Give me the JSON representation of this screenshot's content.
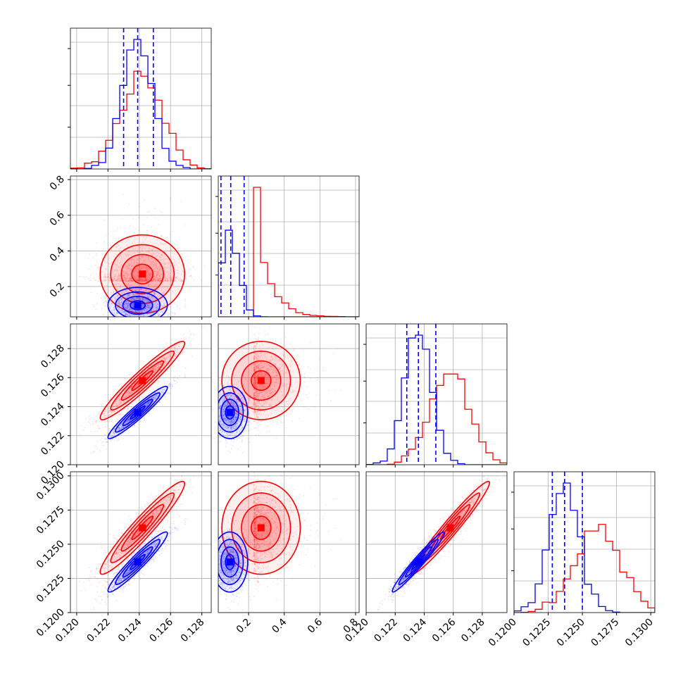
{
  "chart_data": {
    "type": "corner",
    "grid": true,
    "colors": {
      "red": "#ff0000",
      "blue": "#0000ff"
    },
    "series": [
      {
        "color": "#ff0000",
        "median": [
          0.1242,
          0.27,
          0.1258,
          0.1262
        ],
        "std": [
          0.00135,
          0.11,
          0.00135,
          0.0017
        ],
        "corr": {
          "0-2": 0.95,
          "0-3": 0.95,
          "2-3": 0.97,
          "1-2": 0.0,
          "1-3": 0.0,
          "0-1": 0.0
        }
      },
      {
        "color": "#0000ff",
        "median": [
          0.1239,
          0.095,
          0.1236,
          0.1237
        ],
        "std": [
          0.00095,
          0.05,
          0.0009,
          0.0011
        ],
        "corr": {
          "0-2": 0.95,
          "0-3": 0.95,
          "2-3": 0.97,
          "1-2": 0.0,
          "1-3": 0.0,
          "0-1": 0.0
        }
      }
    ],
    "quantiles_blue": [
      [
        0.123,
        0.1239,
        0.1249
      ],
      [
        0.045,
        0.1,
        0.175
      ],
      [
        0.1228,
        0.1236,
        0.1248
      ],
      [
        0.1228,
        0.1237,
        0.125
      ]
    ],
    "parameters": [
      {
        "range": [
          0.1196,
          0.1286
        ],
        "ticks": [
          0.12,
          0.122,
          0.124,
          0.126,
          0.128
        ],
        "tick_labels": [
          "0.120",
          "0.122",
          "0.124",
          "0.126",
          "0.128"
        ]
      },
      {
        "range": [
          0.03,
          0.82
        ],
        "ticks": [
          0.2,
          0.4,
          0.6,
          0.8
        ],
        "tick_labels": [
          "0.2",
          "0.4",
          "0.6",
          "0.8"
        ]
      },
      {
        "range": [
          0.12,
          0.1297
        ],
        "ticks": [
          0.12,
          0.122,
          0.124,
          0.126,
          0.128
        ],
        "tick_labels": [
          "0.120",
          "0.122",
          "0.124",
          "0.126",
          "0.128"
        ]
      },
      {
        "range": [
          0.12,
          0.1303
        ],
        "ticks": [
          0.12,
          0.1225,
          0.125,
          0.1275,
          0.13
        ],
        "tick_labels": [
          "0.1200",
          "0.1225",
          "0.1250",
          "0.1275",
          "0.1300"
        ]
      }
    ]
  }
}
